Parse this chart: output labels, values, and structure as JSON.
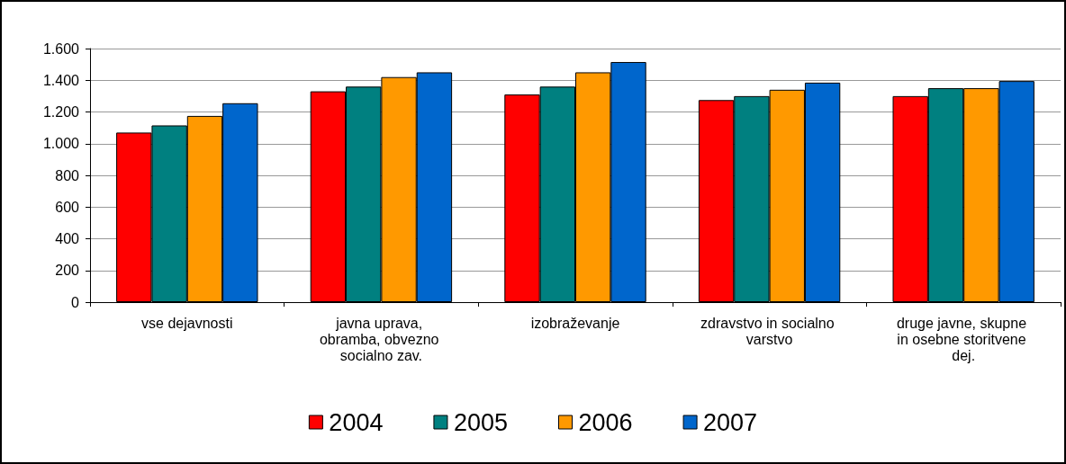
{
  "chart_data": {
    "type": "bar",
    "categories": [
      "vse dejavnosti",
      "javna uprava, obramba, obvezno socialno zav.",
      "izobraževanje",
      "zdravstvo in socialno varstvo",
      "druge javne, skupne in osebne storitvene dej."
    ],
    "series": [
      {
        "name": "2004",
        "color": "#ff0000",
        "values": [
          1070,
          1330,
          1310,
          1275,
          1300
        ]
      },
      {
        "name": "2005",
        "color": "#008080",
        "values": [
          1115,
          1360,
          1360,
          1300,
          1350
        ]
      },
      {
        "name": "2006",
        "color": "#ff9900",
        "values": [
          1175,
          1420,
          1450,
          1340,
          1350
        ]
      },
      {
        "name": "2007",
        "color": "#0066cc",
        "values": [
          1255,
          1450,
          1515,
          1385,
          1395
        ]
      }
    ],
    "ylim": [
      0,
      1600
    ],
    "yticks": [
      0,
      200,
      400,
      600,
      800,
      {
        "value": 1000,
        "label": "1.000"
      },
      {
        "value": 1200,
        "label": "1.200"
      },
      {
        "value": 1400,
        "label": "1.400"
      },
      {
        "value": 1600,
        "label": "1.600"
      }
    ],
    "grid": "y",
    "legend": "bottom"
  }
}
